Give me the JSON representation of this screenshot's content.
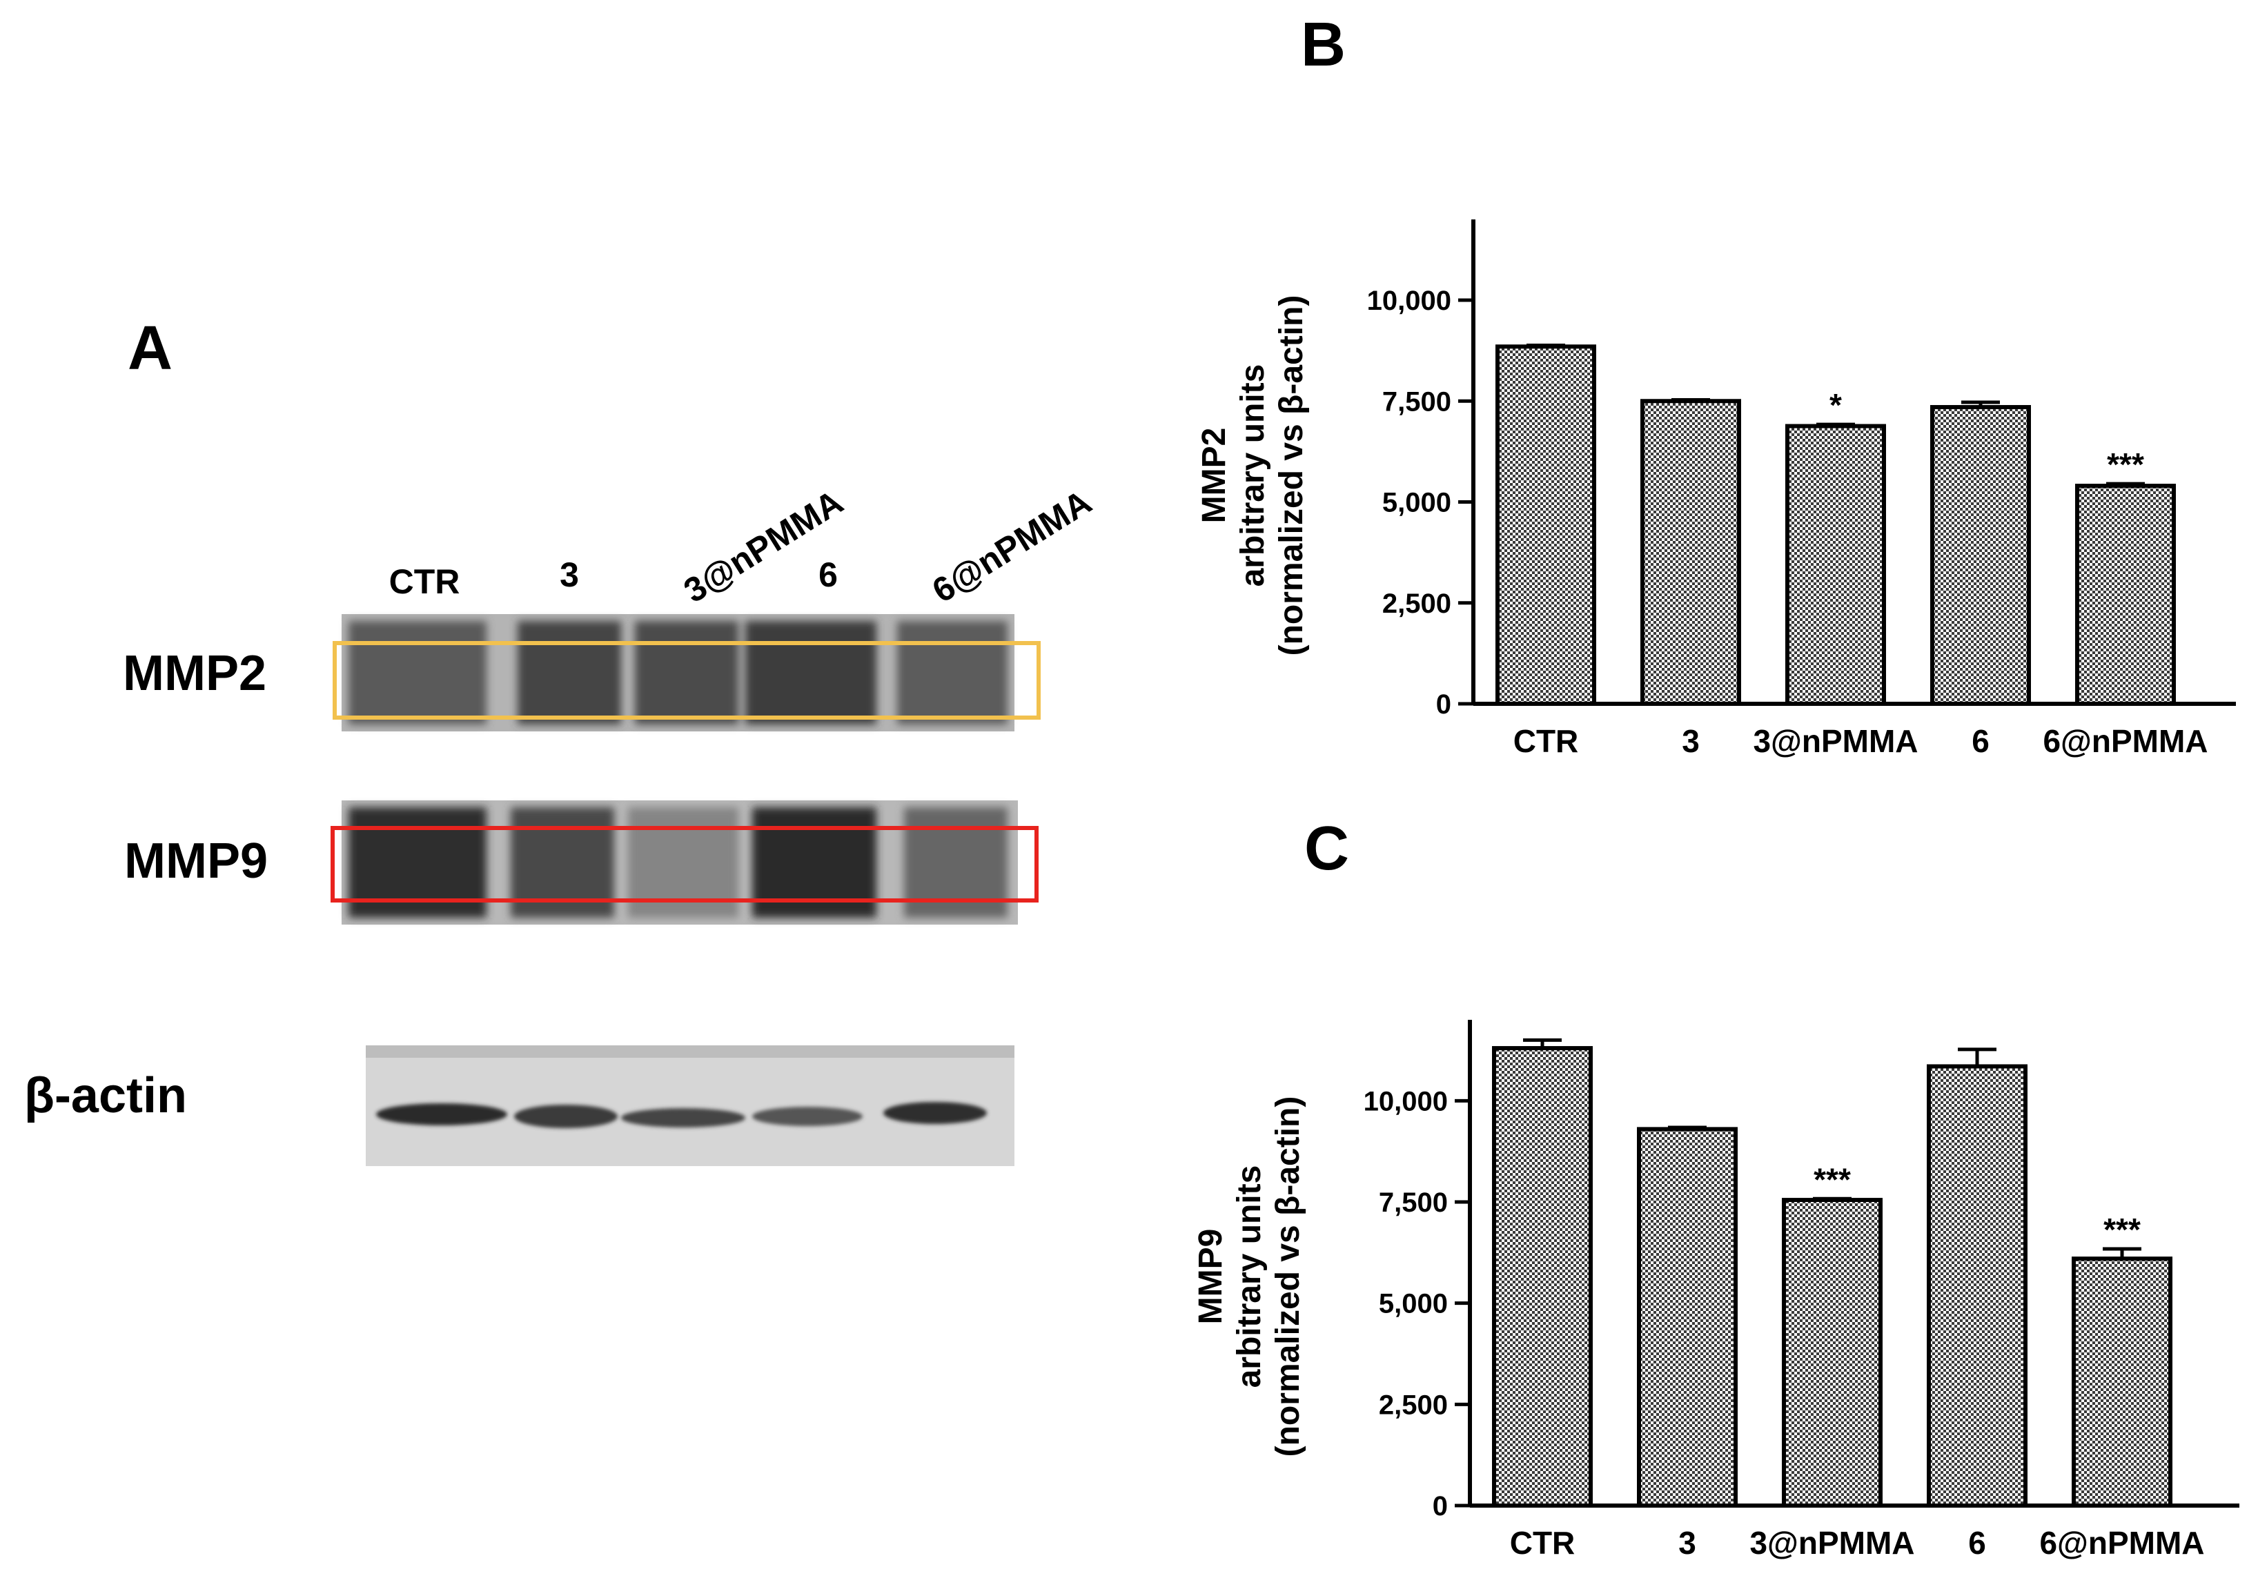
{
  "panels": {
    "a": "A",
    "b": "B",
    "c": "C"
  },
  "blot": {
    "lanes": [
      "CTR",
      "3",
      "3@nPMMA",
      "6",
      "6@nPMMA"
    ],
    "rows": {
      "mmp2": "MMP2",
      "mmp9": "MMP9",
      "actin": "β-actin"
    },
    "highlight_colors": {
      "mmp2": "#F2C14E",
      "mmp9": "#E8231E"
    }
  },
  "chart_data": [
    {
      "type": "bar",
      "panel": "B",
      "categories": [
        "CTR",
        "3",
        "3@nPMMA",
        "6",
        "6@nPMMA"
      ],
      "values": [
        8850,
        7500,
        6880,
        7350,
        5400
      ],
      "errors": [
        30,
        30,
        40,
        120,
        50
      ],
      "significance": [
        "",
        "",
        "*",
        "",
        "***"
      ],
      "ylabel": [
        "MMP2",
        "arbitrary units",
        "(normalized vs β-actin)"
      ],
      "ylim": [
        0,
        12000
      ],
      "yticks": [
        0,
        2500,
        5000,
        7500,
        10000
      ],
      "ytick_labels": [
        "0",
        "2,500",
        "5,000",
        "7,500",
        "10,000"
      ],
      "fill": "checkered gray"
    },
    {
      "type": "bar",
      "panel": "C",
      "categories": [
        "CTR",
        "3",
        "3@nPMMA",
        "6",
        "6@nPMMA"
      ],
      "values": [
        11300,
        9300,
        7550,
        10850,
        6100
      ],
      "errors": [
        200,
        40,
        30,
        420,
        240
      ],
      "significance": [
        "",
        "",
        "***",
        "",
        "***"
      ],
      "ylabel": [
        "MMP9",
        "arbitrary units",
        "(normalized vs β-actin)"
      ],
      "ylim": [
        0,
        12000
      ],
      "yticks": [
        0,
        2500,
        5000,
        7500,
        10000
      ],
      "ytick_labels": [
        "0",
        "2,500",
        "5,000",
        "7,500",
        "10,000"
      ],
      "fill": "checkered gray"
    }
  ]
}
